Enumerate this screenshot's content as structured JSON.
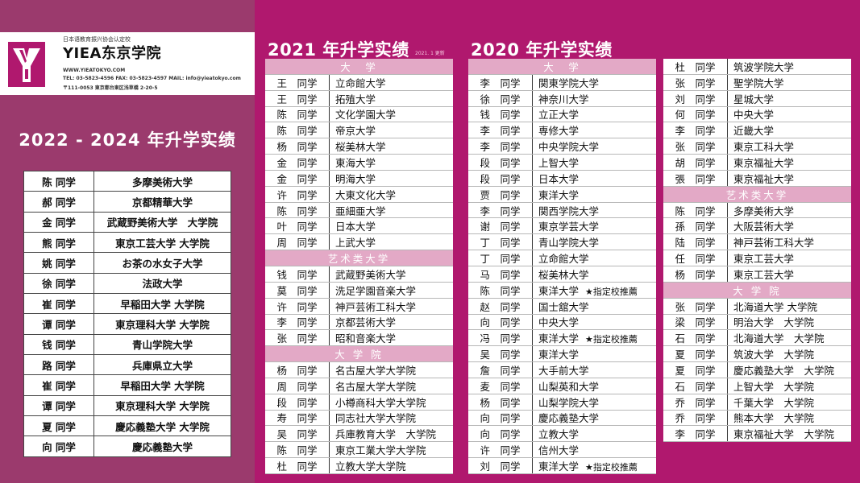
{
  "logo": {
    "org_line": "日本语教育振兴协会认定校",
    "school_name": "YIEA东京学院",
    "website": "WWW.YIEATOKYO.COM",
    "contact": "TEL: 03-5823-4596 FAX: 03-5823-4597 MAIL: info@yieatokyo.com",
    "address": "〒111-0053 東京都台東区浅草橋 2-20-5"
  },
  "left_panel": {
    "title": "2022 - 2024 年升学实绩",
    "rows": [
      {
        "name": "陈 同学",
        "school": "多摩美術大学"
      },
      {
        "name": "郝 同学",
        "school": "京都精華大学"
      },
      {
        "name": "金 同学",
        "school": "武蔵野美術大学　大学院"
      },
      {
        "name": "熊 同学",
        "school": "東京工芸大学 大学院"
      },
      {
        "name": "姚 同学",
        "school": "お茶の水女子大学"
      },
      {
        "name": "徐 同学",
        "school": "法政大学"
      },
      {
        "name": "崔 同学",
        "school": "早稲田大学 大学院"
      },
      {
        "name": "谭 同学",
        "school": "東京理科大学 大学院"
      },
      {
        "name": "钱 同学",
        "school": "青山学院大学"
      },
      {
        "name": "路 同学",
        "school": "兵庫県立大学"
      },
      {
        "name": "崔 同学",
        "school": "早稲田大学 大学院"
      },
      {
        "name": "谭 同学",
        "school": "東京理科大学 大学院"
      },
      {
        "name": "夏 同学",
        "school": "慶応義塾大学 大学院"
      },
      {
        "name": "向 同学",
        "school": "慶応義塾大学"
      }
    ]
  },
  "year_2021": {
    "title": "2021 年升学实绩",
    "note": "2021. 1 更新",
    "rows": [
      {
        "type": "header",
        "text": "大　学"
      },
      {
        "name": "王　同学",
        "school": "立命館大学"
      },
      {
        "name": "王　同学",
        "school": "拓殖大学"
      },
      {
        "name": "陈　同学",
        "school": "文化学園大学"
      },
      {
        "name": "陈　同学",
        "school": "帝京大学"
      },
      {
        "name": "杨　同学",
        "school": "桜美林大学"
      },
      {
        "name": "金　同学",
        "school": "東海大学"
      },
      {
        "name": "金　同学",
        "school": "明海大学"
      },
      {
        "name": "许　同学",
        "school": "大東文化大学"
      },
      {
        "name": "陈　同学",
        "school": "亜細亜大学"
      },
      {
        "name": "叶　同学",
        "school": "日本大学"
      },
      {
        "name": "周　同学",
        "school": "上武大学"
      },
      {
        "type": "header",
        "text": "艺术类大学"
      },
      {
        "name": "钱　同学",
        "school": "武蔵野美術大学"
      },
      {
        "name": "莫　同学",
        "school": "洗足学園音楽大学"
      },
      {
        "name": "许　同学",
        "school": "神戸芸術工科大学"
      },
      {
        "name": "李　同学",
        "school": "京都芸術大学"
      },
      {
        "name": "张　同学",
        "school": "昭和音楽大学"
      },
      {
        "type": "header",
        "text": "大 学 院"
      },
      {
        "name": "杨　同学",
        "school": "名古屋大学大学院"
      },
      {
        "name": "周　同学",
        "school": "名古屋大学大学院"
      },
      {
        "name": "段　同学",
        "school": "小樽商科大学大学院"
      },
      {
        "name": "寿　同学",
        "school": "同志社大学大学院"
      },
      {
        "name": "吴　同学",
        "school": "兵庫教育大学　大学院"
      },
      {
        "name": "陈　同学",
        "school": "東京工業大学大学院"
      },
      {
        "name": "杜　同学",
        "school": "立教大学大学院"
      }
    ]
  },
  "year_2020": {
    "title": "2020 年升学实绩",
    "col1_rows": [
      {
        "type": "header",
        "text": "大　学"
      },
      {
        "name": "李　同学",
        "school": "関東学院大学"
      },
      {
        "name": "徐　同学",
        "school": "神奈川大学"
      },
      {
        "name": "钱　同学",
        "school": "立正大学"
      },
      {
        "name": "李　同学",
        "school": "専修大学"
      },
      {
        "name": "李　同学",
        "school": "中央学院大学"
      },
      {
        "name": "段　同学",
        "school": "上智大学"
      },
      {
        "name": "段　同学",
        "school": "日本大学"
      },
      {
        "name": "贾　同学",
        "school": "東洋大学"
      },
      {
        "name": "李　同学",
        "school": "関西学院大学"
      },
      {
        "name": "谢　同学",
        "school": "東京学芸大学"
      },
      {
        "name": "丁　同学",
        "school": "青山学院大学"
      },
      {
        "name": "丁　同学",
        "school": "立命館大学"
      },
      {
        "name": "马　同学",
        "school": "桜美林大学"
      },
      {
        "name": "陈　同学",
        "school": "東洋大学",
        "mark": "★指定校推薦"
      },
      {
        "name": "赵　同学",
        "school": "国士舘大学"
      },
      {
        "name": "向　同学",
        "school": "中央大学"
      },
      {
        "name": "冯　同学",
        "school": "東洋大学",
        "mark": "★指定校推薦"
      },
      {
        "name": "吴　同学",
        "school": "東洋大学"
      },
      {
        "name": "詹　同学",
        "school": "大手前大学"
      },
      {
        "name": "麦　同学",
        "school": "山梨英和大学"
      },
      {
        "name": "杨　同学",
        "school": "山梨学院大学"
      },
      {
        "name": "向　同学",
        "school": "慶応義塾大学"
      },
      {
        "name": "向　同学",
        "school": "立教大学"
      },
      {
        "name": "许　同学",
        "school": "信州大学"
      },
      {
        "name": "刘　同学",
        "school": "東洋大学",
        "mark": "★指定校推薦"
      }
    ],
    "col2_rows": [
      {
        "name": "杜　同学",
        "school": "筑波学院大学"
      },
      {
        "name": "张　同学",
        "school": "聖学院大学"
      },
      {
        "name": "刘　同学",
        "school": "星城大学"
      },
      {
        "name": "何　同学",
        "school": "中央大学"
      },
      {
        "name": "李　同学",
        "school": "近畿大学"
      },
      {
        "name": "张　同学",
        "school": "東京工科大学"
      },
      {
        "name": "胡　同学",
        "school": "東京福祉大学"
      },
      {
        "name": "張　同学",
        "school": "東京福祉大学"
      },
      {
        "type": "header",
        "text": "艺术类大学"
      },
      {
        "name": "陈　同学",
        "school": "多摩美術大学"
      },
      {
        "name": "孫　同学",
        "school": "大阪芸術大学"
      },
      {
        "name": "陆　同学",
        "school": "神戸芸術工科大学"
      },
      {
        "name": "任　同学",
        "school": "東京工芸大学"
      },
      {
        "name": "杨　同学",
        "school": "東京工芸大学"
      },
      {
        "type": "header",
        "text": "大 学 院"
      },
      {
        "name": "张　同学",
        "school": "北海道大学 大学院"
      },
      {
        "name": "梁　同学",
        "school": "明治大学　大学院"
      },
      {
        "name": "石　同学",
        "school": "北海道大学　大学院"
      },
      {
        "name": "夏　同学",
        "school": "筑波大学　大学院"
      },
      {
        "name": "夏　同学",
        "school": "慶応義塾大学　大学院"
      },
      {
        "name": "石　同学",
        "school": "上智大学　大学院"
      },
      {
        "name": "乔　同学",
        "school": "千葉大学　大学院"
      },
      {
        "name": "乔　同学",
        "school": "熊本大学　大学院"
      },
      {
        "name": "李　同学",
        "school": "東京福祉大学　大学院"
      }
    ]
  },
  "colors": {
    "accent": "#b0186e",
    "left_bg": "#9b3a6d",
    "header_pink": "#e3a9c6"
  }
}
